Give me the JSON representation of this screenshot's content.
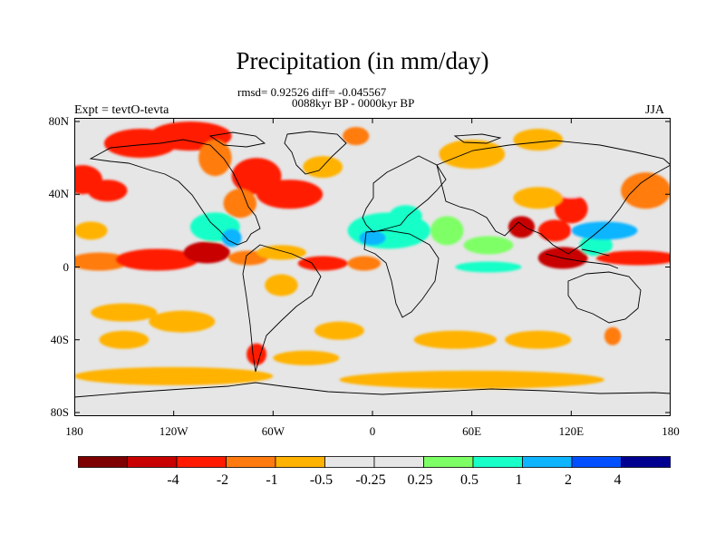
{
  "title": "Precipitation (in mm/day)",
  "stats": {
    "line1": "rmsd= 0.92526 diff= -0.045567",
    "line2": "0088kyr BP - 0000kyr BP"
  },
  "left_label": "Expt = tevtO-tevta",
  "right_label": "JJA",
  "lat_ticks": [
    {
      "label": "80N",
      "lat": 80
    },
    {
      "label": "40N",
      "lat": 40
    },
    {
      "label": "0",
      "lat": 0
    },
    {
      "label": "40S",
      "lat": -40
    },
    {
      "label": "80S",
      "lat": -80
    }
  ],
  "lon_ticks": [
    {
      "label": "180",
      "lon": -180
    },
    {
      "label": "120W",
      "lon": -120
    },
    {
      "label": "60W",
      "lon": -60
    },
    {
      "label": "0",
      "lon": 0
    },
    {
      "label": "60E",
      "lon": 60
    },
    {
      "label": "120E",
      "lon": 120
    },
    {
      "label": "180",
      "lon": 180
    }
  ],
  "colorbar": {
    "colors": [
      "#7f0000",
      "#c80000",
      "#ff1a00",
      "#ff7b10",
      "#ffb200",
      "#e6e6e6",
      "#e6e6e6",
      "#7fff66",
      "#19ffc8",
      "#0fb4ff",
      "#0050ff",
      "#000090"
    ],
    "labels": [
      "-4",
      "-2",
      "-1",
      "-0.5",
      "-0.25",
      "0.25",
      "0.5",
      "1",
      "2",
      "4"
    ]
  },
  "anomalies": [
    {
      "lon": -165,
      "lat": 3,
      "rx": 18,
      "ry": 5,
      "level": -0.6
    },
    {
      "lon": -130,
      "lat": 4,
      "rx": 25,
      "ry": 6,
      "level": -1.3
    },
    {
      "lon": -100,
      "lat": 8,
      "rx": 14,
      "ry": 6,
      "level": -2.2
    },
    {
      "lon": -175,
      "lat": 48,
      "rx": 12,
      "ry": 8,
      "level": -1.1
    },
    {
      "lon": -160,
      "lat": 42,
      "rx": 12,
      "ry": 6,
      "level": -1.2
    },
    {
      "lon": -170,
      "lat": 20,
      "rx": 10,
      "ry": 5,
      "level": -0.4
    },
    {
      "lon": -140,
      "lat": 68,
      "rx": 22,
      "ry": 8,
      "level": -1.2
    },
    {
      "lon": -110,
      "lat": 72,
      "rx": 25,
      "ry": 8,
      "level": -1.8
    },
    {
      "lon": -95,
      "lat": 60,
      "rx": 10,
      "ry": 10,
      "level": -0.8
    },
    {
      "lon": -70,
      "lat": 50,
      "rx": 15,
      "ry": 10,
      "level": -1.2
    },
    {
      "lon": -50,
      "lat": 40,
      "rx": 20,
      "ry": 8,
      "level": -1.5
    },
    {
      "lon": -80,
      "lat": 35,
      "rx": 10,
      "ry": 8,
      "level": -1.0
    },
    {
      "lon": -30,
      "lat": 55,
      "rx": 12,
      "ry": 6,
      "level": -0.3
    },
    {
      "lon": -10,
      "lat": 72,
      "rx": 8,
      "ry": 5,
      "level": -0.6
    },
    {
      "lon": -120,
      "lat": 30,
      "rx": 10,
      "ry": 5,
      "level": 0.3
    },
    {
      "lon": -95,
      "lat": 22,
      "rx": 15,
      "ry": 8,
      "level": 1.5
    },
    {
      "lon": -85,
      "lat": 16,
      "rx": 6,
      "ry": 5,
      "level": 2.2
    },
    {
      "lon": -75,
      "lat": 5,
      "rx": 12,
      "ry": 4,
      "level": -1.0
    },
    {
      "lon": -55,
      "lat": 8,
      "rx": 15,
      "ry": 4,
      "level": -0.5
    },
    {
      "lon": -30,
      "lat": 2,
      "rx": 15,
      "ry": 4,
      "level": -1.8
    },
    {
      "lon": -5,
      "lat": 2,
      "rx": 10,
      "ry": 4,
      "level": -1.0
    },
    {
      "lon": -55,
      "lat": -10,
      "rx": 10,
      "ry": 6,
      "level": -0.4
    },
    {
      "lon": -60,
      "lat": -30,
      "rx": 6,
      "ry": 8,
      "level": 0.3
    },
    {
      "lon": -115,
      "lat": -30,
      "rx": 20,
      "ry": 6,
      "level": -0.3
    },
    {
      "lon": -150,
      "lat": -25,
      "rx": 20,
      "ry": 5,
      "level": -0.4
    },
    {
      "lon": -150,
      "lat": -40,
      "rx": 15,
      "ry": 5,
      "level": -0.3
    },
    {
      "lon": -70,
      "lat": -48,
      "rx": 6,
      "ry": 6,
      "level": -2.0
    },
    {
      "lon": -20,
      "lat": -35,
      "rx": 15,
      "ry": 5,
      "level": -0.3
    },
    {
      "lon": -40,
      "lat": -50,
      "rx": 20,
      "ry": 4,
      "level": -0.3
    },
    {
      "lon": 10,
      "lat": 20,
      "rx": 25,
      "ry": 10,
      "level": 1.4
    },
    {
      "lon": 0,
      "lat": 16,
      "rx": 8,
      "ry": 4,
      "level": 3.0
    },
    {
      "lon": 20,
      "lat": 28,
      "rx": 10,
      "ry": 6,
      "level": 1.0
    },
    {
      "lon": 45,
      "lat": 20,
      "rx": 10,
      "ry": 8,
      "level": 0.8
    },
    {
      "lon": 70,
      "lat": 12,
      "rx": 15,
      "ry": 5,
      "level": 0.8
    },
    {
      "lon": 70,
      "lat": 0,
      "rx": 20,
      "ry": 3,
      "level": 1.5
    },
    {
      "lon": 90,
      "lat": 22,
      "rx": 8,
      "ry": 6,
      "level": -2.5
    },
    {
      "lon": 110,
      "lat": 20,
      "rx": 10,
      "ry": 6,
      "level": -1.2
    },
    {
      "lon": 115,
      "lat": 5,
      "rx": 15,
      "ry": 6,
      "level": -3.0
    },
    {
      "lon": 135,
      "lat": 12,
      "rx": 10,
      "ry": 6,
      "level": 1.5
    },
    {
      "lon": 140,
      "lat": 20,
      "rx": 20,
      "ry": 5,
      "level": 2.3
    },
    {
      "lon": 160,
      "lat": 5,
      "rx": 25,
      "ry": 4,
      "level": -1.5
    },
    {
      "lon": 165,
      "lat": 42,
      "rx": 15,
      "ry": 10,
      "level": -1.0
    },
    {
      "lon": 120,
      "lat": 32,
      "rx": 10,
      "ry": 8,
      "level": -1.5
    },
    {
      "lon": 120,
      "lat": 42,
      "rx": 10,
      "ry": 4,
      "level": 0.4
    },
    {
      "lon": 100,
      "lat": 38,
      "rx": 15,
      "ry": 6,
      "level": -0.4
    },
    {
      "lon": 100,
      "lat": 70,
      "rx": 15,
      "ry": 6,
      "level": -0.4
    },
    {
      "lon": 60,
      "lat": 62,
      "rx": 20,
      "ry": 8,
      "level": -0.4
    },
    {
      "lon": 60,
      "lat": 45,
      "rx": 15,
      "ry": 5,
      "level": 0.4
    },
    {
      "lon": 30,
      "lat": 60,
      "rx": 10,
      "ry": 6,
      "level": 0.4
    },
    {
      "lon": 160,
      "lat": -12,
      "rx": 20,
      "ry": 5,
      "level": 0.4
    },
    {
      "lon": 80,
      "lat": -15,
      "rx": 20,
      "ry": 5,
      "level": 0.3
    },
    {
      "lon": 135,
      "lat": -25,
      "rx": 15,
      "ry": 8,
      "level": 0.4
    },
    {
      "lon": 145,
      "lat": -38,
      "rx": 5,
      "ry": 5,
      "level": -1.0
    },
    {
      "lon": 100,
      "lat": -40,
      "rx": 20,
      "ry": 5,
      "level": -0.3
    },
    {
      "lon": 50,
      "lat": -40,
      "rx": 25,
      "ry": 5,
      "level": -0.3
    },
    {
      "lon": -120,
      "lat": -60,
      "rx": 60,
      "ry": 5,
      "level": -0.3
    },
    {
      "lon": 60,
      "lat": -62,
      "rx": 80,
      "ry": 5,
      "level": -0.3
    }
  ]
}
